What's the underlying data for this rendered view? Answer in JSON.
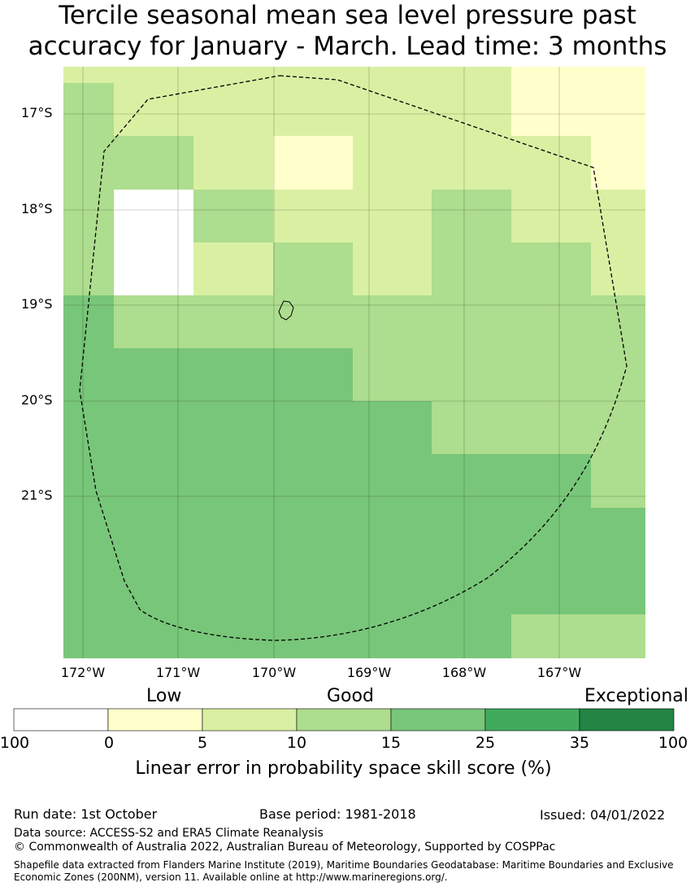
{
  "title": {
    "line1": "Tercile seasonal mean sea level pressure past",
    "line2": "accuracy for January - March. Lead time: 3 months"
  },
  "map": {
    "lat_ticks": [
      "17°S",
      "18°S",
      "19°S",
      "20°S",
      "21°S"
    ],
    "lon_ticks": [
      "172°W",
      "171°W",
      "170°W",
      "169°W",
      "168°W",
      "167°W"
    ]
  },
  "legend": {
    "categories": [
      "Low",
      "Good",
      "Exceptional"
    ],
    "ticks": [
      "100",
      "0",
      "5",
      "10",
      "15",
      "25",
      "35",
      "100"
    ],
    "colors": [
      "#ffffff",
      "#ffffcc",
      "#d9f0a3",
      "#addd8e",
      "#78c679",
      "#41ab5d",
      "#238443"
    ],
    "label": "Linear error in probability space skill score (%)"
  },
  "footer": {
    "run_date": "Run date: 1st October",
    "base_period": "Base period: 1981-2018",
    "issued": "Issued: 04/01/2022",
    "data_source": "Data source: ACCESS-S2 and ERA5 Climate Reanalysis",
    "copyright": "© Commonwealth of Australia 2022, Australian Bureau of Meteorology, Supported by COSPPac",
    "shapefile": "Shapefile data extracted from Flanders Marine Institute (2019), Maritime Boundaries Geodatabase: Maritime Boundaries and Exclusive Economic Zones (200NM), version 11. Available online at http://www.marineregions.org/."
  }
}
